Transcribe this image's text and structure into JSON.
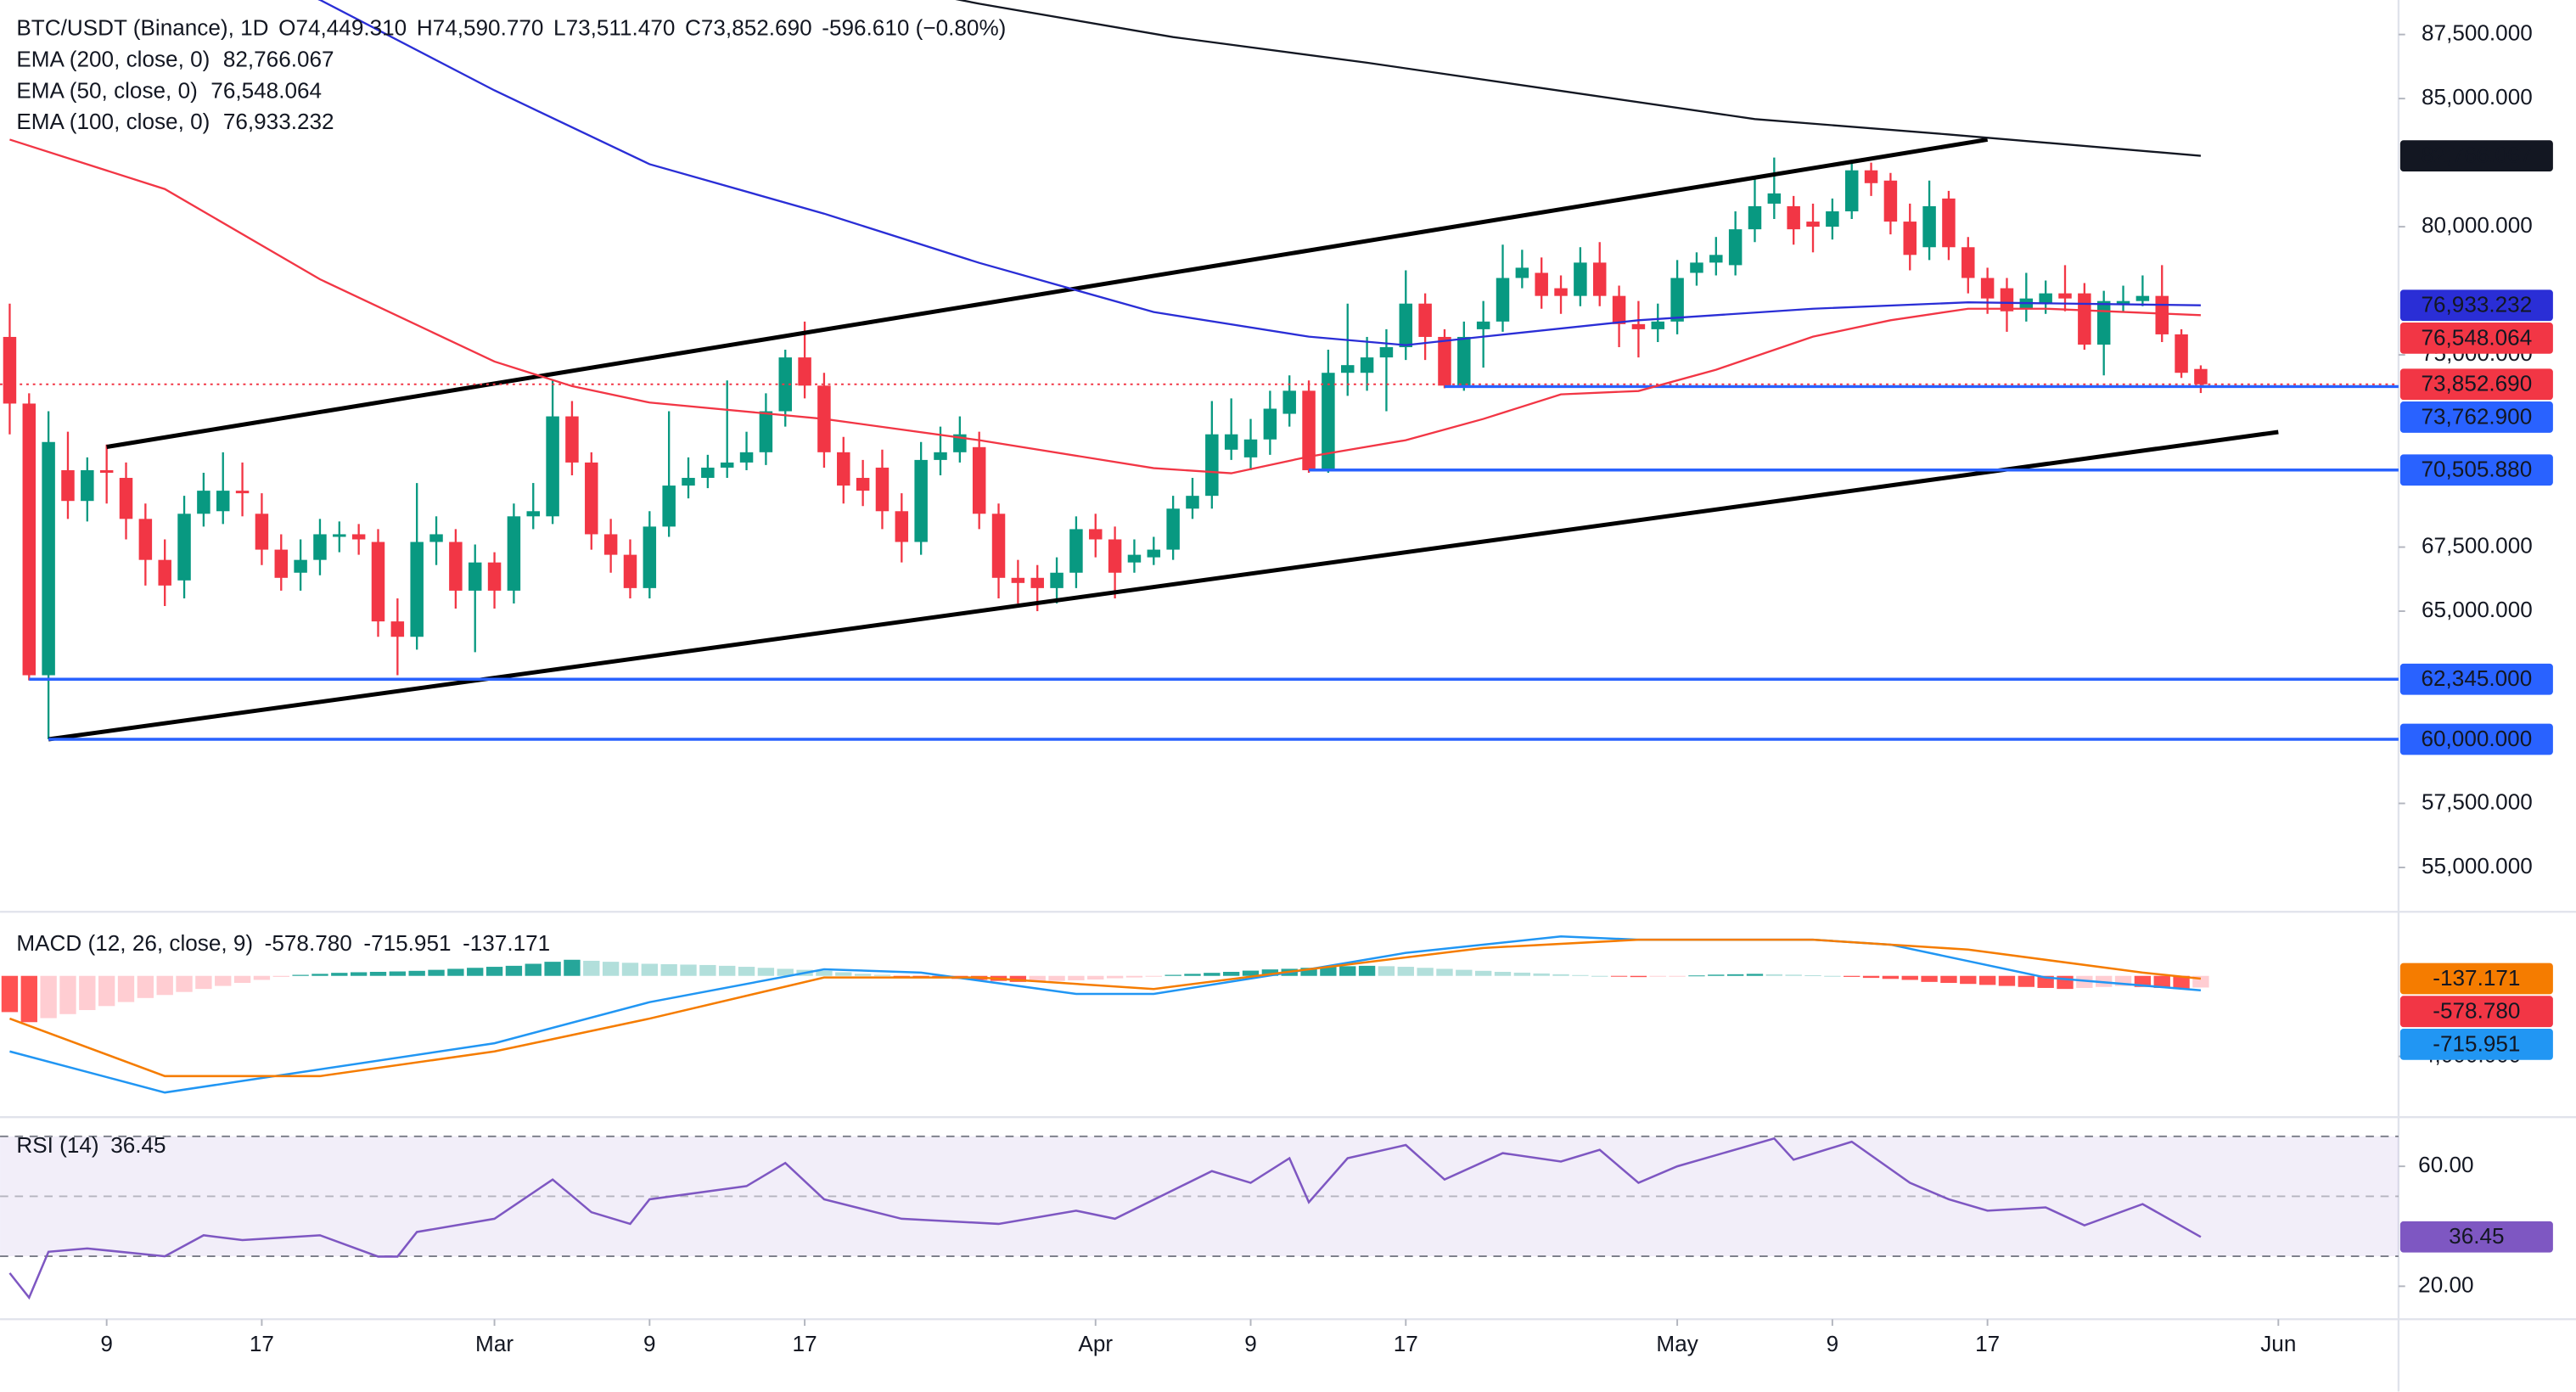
{
  "chart_data": [
    {
      "type": "candlestick",
      "title": "BTC/USDT (Binance), 1D",
      "ohlc_labels": [
        "O74,449.310",
        "H74,590.770",
        "L73,511.470",
        "C73,852.690"
      ],
      "change_label": "-596.610 (−0.80%)",
      "last_price_label": "73,852.690",
      "up_color": "#089981",
      "down_color": "#f23645",
      "xlim": [
        -0.5,
        123.2
      ],
      "xticks": [
        {
          "value": 5,
          "label": "9"
        },
        {
          "value": 13,
          "label": "17"
        },
        {
          "value": 25,
          "label": "Mar"
        },
        {
          "value": 33,
          "label": "9"
        },
        {
          "value": 41,
          "label": "17"
        },
        {
          "value": 56,
          "label": "Apr"
        },
        {
          "value": 64,
          "label": "9"
        },
        {
          "value": 72,
          "label": "17"
        },
        {
          "value": 86,
          "label": "May"
        },
        {
          "value": 94,
          "label": "9"
        },
        {
          "value": 102,
          "label": "17"
        },
        {
          "value": 117,
          "label": "Jun"
        }
      ],
      "ylim": [
        53270,
        88846
      ],
      "yticks": [
        {
          "value": 87500,
          "label": "87,500.000"
        },
        {
          "value": 85000,
          "label": "85,000.000"
        },
        {
          "value": 80000,
          "label": "80,000.000"
        },
        {
          "value": 75000,
          "label": "75,000.000"
        },
        {
          "value": 67500,
          "label": "67,500.000"
        },
        {
          "value": 65000,
          "label": "65,000.000"
        },
        {
          "value": 57500,
          "label": "57,500.000"
        },
        {
          "value": 55000,
          "label": "55,000.000"
        }
      ],
      "candles": {
        "open": [
          75700,
          73100,
          62500,
          70500,
          69300,
          70500,
          70200,
          68600,
          67000,
          66200,
          68800,
          68900,
          69700,
          68800,
          67400,
          66500,
          67000,
          67900,
          68000,
          67700,
          64600,
          64000,
          67700,
          67700,
          65800,
          66900,
          65800,
          68700,
          68700,
          72600,
          70800,
          68000,
          67200,
          65900,
          68300,
          69900,
          70200,
          70600,
          70800,
          71200,
          72800,
          74900,
          73800,
          71200,
          70200,
          70600,
          68900,
          67700,
          70900,
          71200,
          71400,
          68800,
          66300,
          66300,
          65900,
          66500,
          68200,
          67800,
          66900,
          67100,
          67400,
          69000,
          69500,
          71300,
          71000,
          71700,
          72700,
          73600,
          70500,
          74300,
          74300,
          74900,
          75300,
          77000,
          75700,
          73800,
          76000,
          76300,
          78000,
          78200,
          77600,
          77300,
          78600,
          77300,
          76200,
          76000,
          76300,
          78200,
          78600,
          78500,
          79900,
          80900,
          80800,
          80200,
          80000,
          80600,
          82200,
          81800,
          80200,
          79200,
          81100,
          79200,
          78000,
          77600,
          76800,
          77000,
          77400,
          77400,
          75400,
          77000,
          77100,
          77300,
          75800,
          74449.31
        ],
        "high": [
          77000,
          73500,
          72800,
          72000,
          71000,
          71500,
          70800,
          69200,
          67800,
          69500,
          70400,
          71200,
          70800,
          69600,
          68000,
          67800,
          68600,
          68500,
          68400,
          68200,
          65500,
          70000,
          68700,
          68200,
          67600,
          67300,
          69200,
          70000,
          74000,
          73200,
          71200,
          68600,
          67800,
          68900,
          72800,
          71000,
          71100,
          74000,
          72000,
          73500,
          75200,
          76300,
          74300,
          71800,
          70900,
          71300,
          69600,
          71600,
          72200,
          72600,
          72000,
          69200,
          67000,
          66800,
          67100,
          68700,
          68800,
          68300,
          67800,
          67900,
          69500,
          70200,
          73200,
          73300,
          72500,
          73600,
          74200,
          74000,
          75200,
          77000,
          75700,
          76000,
          78300,
          77400,
          76000,
          76300,
          77100,
          79300,
          79100,
          78800,
          78100,
          79200,
          79400,
          77700,
          77100,
          77000,
          78700,
          79000,
          79600,
          80600,
          81900,
          82700,
          81200,
          80900,
          81100,
          82500,
          82500,
          82100,
          80900,
          81800,
          81400,
          79600,
          78400,
          78000,
          78200,
          77900,
          78500,
          77800,
          77500,
          77700,
          78100,
          78500,
          76000,
          74590.77
        ],
        "low": [
          71900,
          62300,
          60000,
          68600,
          68500,
          69200,
          67800,
          66000,
          65200,
          65500,
          68300,
          68400,
          68700,
          66800,
          65800,
          65800,
          66400,
          67300,
          67200,
          64000,
          62500,
          63500,
          66800,
          65100,
          63400,
          65100,
          65300,
          68200,
          68400,
          70300,
          67400,
          66500,
          65500,
          65500,
          67900,
          69400,
          69800,
          70200,
          70500,
          70700,
          72200,
          73300,
          70600,
          69200,
          69100,
          68200,
          66900,
          67200,
          70300,
          70800,
          68200,
          65500,
          65300,
          65000,
          65300,
          65900,
          67100,
          65500,
          66500,
          66800,
          67000,
          68600,
          69000,
          70900,
          70500,
          71100,
          72200,
          70400,
          70400,
          73400,
          73600,
          72800,
          74800,
          74800,
          73700,
          73600,
          74500,
          75900,
          77600,
          76800,
          76600,
          76900,
          76900,
          75300,
          74900,
          75500,
          75800,
          77700,
          78100,
          78100,
          79400,
          80300,
          79300,
          79000,
          79500,
          80300,
          81200,
          79700,
          78300,
          78700,
          78700,
          77400,
          76600,
          75900,
          76300,
          76600,
          76700,
          75200,
          74200,
          76700,
          76900,
          75500,
          74100,
          73511.47
        ],
        "close": [
          73100,
          62500,
          71600,
          69300,
          70500,
          70400,
          68600,
          67000,
          66000,
          68800,
          69700,
          69700,
          69600,
          67400,
          66300,
          67000,
          68000,
          68000,
          67800,
          64600,
          64000,
          67700,
          68000,
          65800,
          66900,
          65800,
          68700,
          68900,
          72600,
          70800,
          68000,
          67200,
          65900,
          68300,
          69900,
          70200,
          70600,
          70800,
          71200,
          72800,
          74900,
          73800,
          71200,
          69900,
          69700,
          68900,
          67700,
          70900,
          71200,
          71900,
          68800,
          66300,
          66100,
          65900,
          66500,
          68200,
          67800,
          66500,
          67200,
          67400,
          69000,
          69500,
          71900,
          71900,
          71700,
          72900,
          73600,
          70500,
          74300,
          74600,
          74900,
          75300,
          77000,
          75700,
          73800,
          75700,
          76300,
          78000,
          78400,
          77300,
          77300,
          78600,
          77300,
          76200,
          76000,
          76300,
          78000,
          78600,
          78900,
          79900,
          80800,
          81300,
          79900,
          80000,
          80600,
          82200,
          81700,
          80200,
          78900,
          80800,
          79200,
          78000,
          77200,
          76700,
          77200,
          77400,
          77200,
          75400,
          77100,
          77100,
          77300,
          75800,
          74300,
          73852.69
        ]
      },
      "series": [
        {
          "name": "EMA (200, close, 0)",
          "color": "#131722",
          "legend_value": "82,766.067",
          "x": [
            48,
            50,
            60,
            70,
            80,
            90,
            100,
            113
          ],
          "values": [
            89000,
            88700,
            87400,
            86400,
            85300,
            84200,
            83600,
            82766.067
          ]
        },
        {
          "name": "EMA (50, close, 0)",
          "color": "#f23645",
          "legend_value": "76,548.064",
          "x": [
            0,
            8,
            16,
            25,
            29,
            33,
            42,
            50,
            59,
            63,
            67,
            72,
            76,
            80,
            84,
            88,
            93,
            97,
            101,
            105,
            113
          ],
          "values": [
            83400,
            81470,
            77950,
            74740,
            73780,
            73140,
            72500,
            71670,
            70580,
            70380,
            71030,
            71670,
            72500,
            73460,
            73590,
            74420,
            75710,
            76350,
            76800,
            76800,
            76548.064
          ]
        },
        {
          "name": "EMA (100, close, 0)",
          "color": "#2a2ed6",
          "legend_value": "76,933.232",
          "x": [
            14,
            16,
            25,
            33,
            42,
            50,
            59,
            67,
            72,
            76,
            84,
            93,
            101,
            113
          ],
          "values": [
            89500,
            88850,
            85320,
            82440,
            80510,
            78590,
            76670,
            75710,
            75380,
            75710,
            76350,
            76800,
            77050,
            76933.232
          ]
        }
      ],
      "levels": [
        {
          "value": 73762.9,
          "label": "73,762.900",
          "x_start": 74
        },
        {
          "value": 70505.88,
          "label": "70,505.880",
          "x_start": 67
        },
        {
          "value": 62345,
          "label": "62,345.000",
          "x_start": 1
        },
        {
          "value": 60000,
          "label": "60,000.000",
          "x_start": 2
        }
      ],
      "level_color": "#2962ff",
      "trendlines": [
        {
          "x": [
            5,
            102
          ],
          "values": [
            71410,
            83400
          ]
        },
        {
          "x": [
            2,
            117
          ],
          "values": [
            60000,
            71990
          ]
        }
      ]
    },
    {
      "type": "macd",
      "title": "MACD (12, 26, close, 9)",
      "ylim": [
        -7020,
        3184
      ],
      "yticks": [
        {
          "value": -4000,
          "label": "-4,000.000"
        }
      ],
      "histogram": {
        "legend_value": "-578.780",
        "color": "#f23645",
        "values": [
          -1800,
          -2300,
          -2100,
          -1900,
          -1700,
          -1500,
          -1300,
          -1100,
          -950,
          -800,
          -650,
          -500,
          -350,
          -200,
          -50,
          50,
          100,
          150,
          180,
          200,
          220,
          250,
          300,
          350,
          400,
          450,
          500,
          600,
          700,
          800,
          750,
          700,
          650,
          600,
          580,
          560,
          540,
          500,
          450,
          400,
          350,
          300,
          250,
          180,
          100,
          50,
          -20,
          -80,
          -120,
          -150,
          -200,
          -250,
          -300,
          -280,
          -250,
          -220,
          -180,
          -120,
          -80,
          -30,
          50,
          100,
          150,
          200,
          260,
          320,
          350,
          400,
          450,
          480,
          500,
          480,
          450,
          400,
          350,
          300,
          250,
          200,
          160,
          120,
          80,
          40,
          0,
          -30,
          -60,
          -40,
          -20,
          20,
          60,
          80,
          100,
          80,
          60,
          30,
          0,
          -50,
          -100,
          -150,
          -200,
          -300,
          -350,
          -400,
          -450,
          -500,
          -550,
          -600,
          -650,
          -600,
          -550,
          -500,
          -550,
          -600,
          -650,
          -578.78
        ]
      },
      "series": [
        {
          "legend_value": "-715.951",
          "color": "#2196f3",
          "x": [
            0,
            8,
            25,
            33,
            42,
            47,
            55,
            59,
            67,
            72,
            80,
            84,
            93,
            97,
            101,
            105,
            113
          ],
          "values": [
            -3755,
            -5796,
            -3347,
            -1306,
            327,
            163,
            -898,
            -898,
            327,
            1143,
            1959,
            1796,
            1796,
            1551,
            735,
            -82,
            -715.951
          ]
        },
        {
          "legend_value": "-137.171",
          "color": "#f57c00",
          "x": [
            0,
            8,
            16,
            25,
            33,
            42,
            50,
            59,
            67,
            76,
            84,
            93,
            101,
            110,
            113
          ],
          "values": [
            -2122,
            -4980,
            -4980,
            -3755,
            -2122,
            -82,
            -82,
            -653,
            327,
            1388,
            1796,
            1796,
            1306,
            163,
            -137.171
          ]
        }
      ]
    },
    {
      "type": "rsi",
      "title": "RSI (14)",
      "ylim": [
        9,
        76.4
      ],
      "yticks": [
        {
          "value": 60,
          "label": "60.00"
        },
        {
          "value": 20,
          "label": "20.00"
        }
      ],
      "bands": [
        70,
        50,
        30
      ],
      "series": [
        {
          "legend_value": "36.45",
          "color": "#7e57c2",
          "x": [
            0,
            1,
            2,
            4,
            8,
            10,
            12,
            16,
            19,
            20,
            21,
            25,
            28,
            30,
            32,
            33,
            38,
            40,
            42,
            46,
            51,
            55,
            57,
            62,
            64,
            66,
            67,
            69,
            72,
            74,
            77,
            80,
            82,
            84,
            86,
            91,
            92,
            95,
            98,
            100,
            102,
            105,
            107,
            110,
            113
          ],
          "values": [
            24.4,
            16.2,
            31.5,
            32.6,
            30,
            37,
            35.4,
            37,
            29.9,
            29.9,
            38.1,
            42.5,
            55.6,
            44.7,
            40.8,
            49,
            53.4,
            61.1,
            49,
            42.5,
            40.8,
            45.2,
            42.5,
            58.4,
            54.5,
            62.7,
            48,
            62.7,
            67.1,
            55.6,
            64.4,
            61.6,
            65.5,
            54.5,
            60,
            69.3,
            62.2,
            68.2,
            54.5,
            49,
            45.2,
            46.3,
            40.3,
            47.4,
            36.45
          ]
        }
      ]
    }
  ]
}
